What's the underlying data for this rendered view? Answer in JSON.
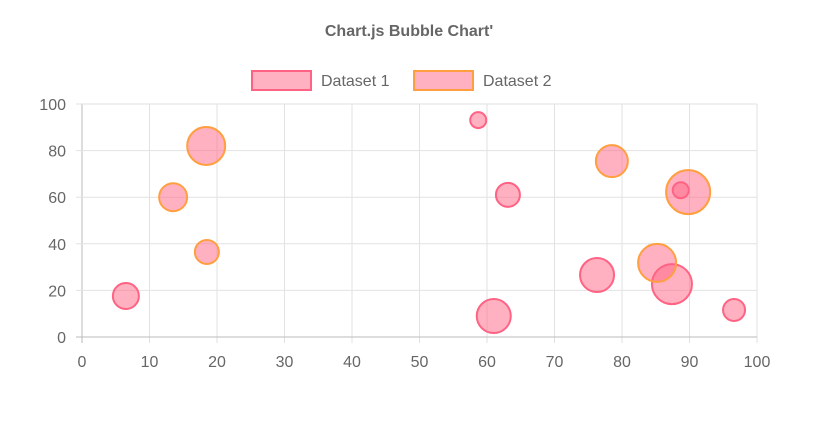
{
  "chart_data": {
    "type": "bubble",
    "title": "Chart.js Bubble Chart'",
    "legend_position": "top",
    "grid": true,
    "xlim": [
      0,
      100
    ],
    "ylim": [
      0,
      100
    ],
    "x_ticks": [
      "0",
      "10",
      "20",
      "30",
      "40",
      "50",
      "60",
      "70",
      "80",
      "90",
      "100"
    ],
    "y_ticks": [
      "0",
      "20",
      "40",
      "60",
      "80",
      "100"
    ],
    "series": [
      {
        "name": "Dataset 1",
        "border_color": "#ff6384",
        "fill_color": "rgba(255,99,132,0.5)",
        "points": [
          {
            "x": 6.5,
            "y": 17.6,
            "r": 13
          },
          {
            "x": 58.7,
            "y": 93.1,
            "r": 8
          },
          {
            "x": 63.1,
            "y": 61.0,
            "r": 12
          },
          {
            "x": 61.0,
            "y": 9.0,
            "r": 17
          },
          {
            "x": 76.3,
            "y": 26.6,
            "r": 17
          },
          {
            "x": 87.4,
            "y": 22.7,
            "r": 20
          },
          {
            "x": 96.6,
            "y": 11.6,
            "r": 11
          },
          {
            "x": 88.7,
            "y": 63.0,
            "r": 8
          }
        ]
      },
      {
        "name": "Dataset 2",
        "border_color": "#ff9f40",
        "fill_color": "rgba(255,99,132,0.5)",
        "points": [
          {
            "x": 18.4,
            "y": 82.0,
            "r": 19
          },
          {
            "x": 13.5,
            "y": 60.0,
            "r": 14
          },
          {
            "x": 18.5,
            "y": 36.5,
            "r": 12
          },
          {
            "x": 78.5,
            "y": 75.5,
            "r": 16
          },
          {
            "x": 85.2,
            "y": 31.8,
            "r": 19
          },
          {
            "x": 89.8,
            "y": 62.2,
            "r": 22
          }
        ]
      }
    ]
  }
}
